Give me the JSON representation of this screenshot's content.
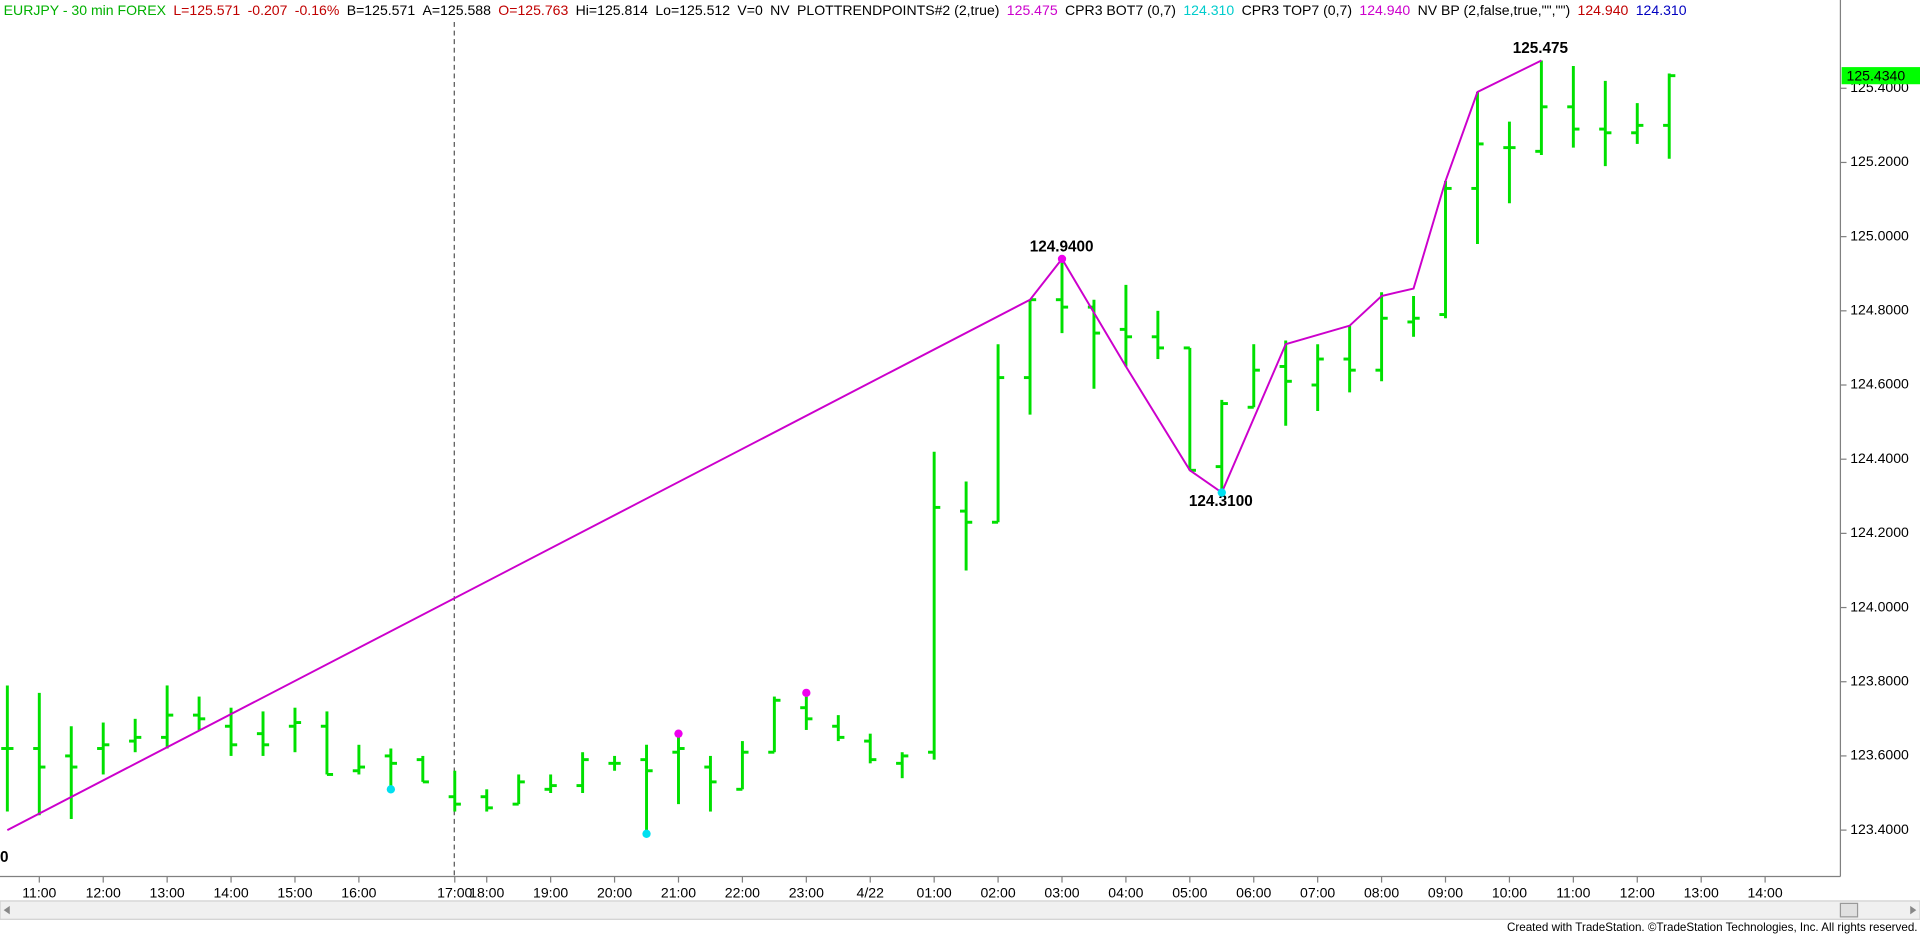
{
  "chart_data": {
    "type": "ohlc",
    "header": [
      {
        "text": "EURJPY - 30 min  FOREX",
        "color": "#00b000"
      },
      {
        "text": "L=125.571",
        "color": "#c00000"
      },
      {
        "text": "-0.207",
        "color": "#c00000"
      },
      {
        "text": "-0.16%",
        "color": "#c00000"
      },
      {
        "text": "B=125.571",
        "color": "#000000"
      },
      {
        "text": "A=125.588",
        "color": "#000000"
      },
      {
        "text": "O=125.763",
        "color": "#c00000"
      },
      {
        "text": "Hi=125.814",
        "color": "#000000"
      },
      {
        "text": "Lo=125.512",
        "color": "#000000"
      },
      {
        "text": "V=0",
        "color": "#000000"
      },
      {
        "text": "NV",
        "color": "#000000"
      },
      {
        "text": "PLOTTRENDPOINTS#2 (2,true)",
        "color": "#000000"
      },
      {
        "text": "125.475",
        "color": "#cc00cc"
      },
      {
        "text": "CPR3 BOT7 (0,7)",
        "color": "#000000"
      },
      {
        "text": "124.310",
        "color": "#00cccc"
      },
      {
        "text": "CPR3 TOP7 (0,7)",
        "color": "#000000"
      },
      {
        "text": "124.940",
        "color": "#cc00cc"
      },
      {
        "text": "NV BP (2,false,true,\"\",\"\")",
        "color": "#000000"
      },
      {
        "text": "124.940",
        "color": "#c00000"
      },
      {
        "text": "124.310",
        "color": "#0000c0"
      }
    ],
    "categories": [
      null,
      "11:00",
      null,
      "12:00",
      null,
      "13:00",
      null,
      "14:00",
      null,
      "15:00",
      null,
      "16:00",
      null,
      null,
      "17:00",
      "18:00",
      null,
      "19:00",
      null,
      "20:00",
      null,
      "21:00",
      null,
      "22:00",
      null,
      "23:00",
      null,
      "4/22",
      null,
      "01:00",
      null,
      "02:00",
      null,
      "03:00",
      null,
      "04:00",
      null,
      "05:00",
      null,
      "06:00",
      null,
      "07:00",
      null,
      "08:00",
      null,
      "09:00",
      null,
      "10:00",
      null,
      "11:00",
      null,
      "12:00",
      null,
      "13:00",
      null,
      "14:00"
    ],
    "open": [
      123.62,
      123.62,
      123.6,
      123.62,
      123.64,
      123.65,
      123.71,
      123.68,
      123.66,
      123.68,
      123.68,
      123.56,
      123.6,
      123.59,
      123.49,
      123.49,
      123.47,
      123.51,
      123.52,
      123.58,
      123.59,
      123.61,
      123.57,
      123.51,
      123.61,
      123.73,
      123.68,
      123.64,
      123.58,
      123.61,
      124.26,
      124.23,
      124.62,
      124.83,
      124.81,
      124.75,
      124.73,
      124.7,
      124.38,
      124.54,
      124.65,
      124.6,
      124.67,
      124.64,
      124.77,
      124.79,
      125.13,
      125.24,
      125.23,
      125.35,
      125.29,
      125.28,
      125.3,
      null,
      null,
      null
    ],
    "high": [
      123.79,
      123.77,
      123.68,
      123.69,
      123.7,
      123.79,
      123.76,
      123.73,
      123.72,
      123.73,
      123.72,
      123.63,
      123.62,
      123.6,
      123.56,
      123.51,
      123.55,
      123.55,
      123.61,
      123.6,
      123.63,
      123.65,
      123.6,
      123.64,
      123.76,
      123.76,
      123.71,
      123.66,
      123.61,
      124.42,
      124.34,
      124.71,
      124.83,
      124.94,
      124.83,
      124.87,
      124.8,
      124.7,
      124.56,
      124.71,
      124.72,
      124.71,
      124.76,
      124.85,
      124.84,
      125.15,
      125.39,
      125.31,
      125.475,
      125.46,
      125.42,
      125.36,
      125.44,
      null,
      null,
      null
    ],
    "low": [
      123.45,
      123.44,
      123.43,
      123.55,
      123.61,
      123.62,
      123.67,
      123.6,
      123.6,
      123.61,
      123.55,
      123.55,
      123.51,
      123.53,
      123.45,
      123.45,
      123.47,
      123.5,
      123.5,
      123.56,
      123.39,
      123.47,
      123.45,
      123.51,
      123.61,
      123.67,
      123.64,
      123.58,
      123.54,
      123.59,
      124.1,
      124.23,
      124.52,
      124.74,
      124.59,
      124.65,
      124.67,
      124.37,
      124.31,
      124.54,
      124.49,
      124.53,
      124.58,
      124.61,
      124.73,
      124.78,
      124.98,
      125.09,
      125.22,
      125.24,
      125.19,
      125.25,
      125.21,
      null,
      null,
      null
    ],
    "close": [
      123.62,
      123.57,
      123.57,
      123.63,
      123.65,
      123.71,
      123.7,
      123.63,
      123.63,
      123.69,
      123.55,
      123.57,
      123.58,
      123.53,
      123.47,
      123.46,
      123.53,
      123.52,
      123.59,
      123.58,
      123.56,
      123.62,
      123.53,
      123.61,
      123.75,
      123.7,
      123.65,
      123.59,
      123.6,
      124.27,
      124.23,
      124.62,
      124.83,
      124.81,
      124.74,
      124.73,
      124.7,
      124.37,
      124.55,
      124.64,
      124.61,
      124.67,
      124.64,
      124.78,
      124.78,
      125.13,
      125.25,
      125.24,
      125.35,
      125.29,
      125.28,
      125.3,
      125.434,
      null,
      null,
      null
    ],
    "color": "#00e000",
    "trend": {
      "color": "#cc00cc",
      "x": [
        0,
        32,
        33,
        35,
        37,
        38,
        40,
        42,
        43,
        44,
        45,
        46,
        48
      ],
      "values": [
        123.4,
        124.83,
        124.94,
        124.65,
        124.37,
        124.31,
        124.71,
        124.76,
        124.84,
        124.86,
        125.15,
        125.39,
        125.475
      ]
    },
    "markers": [
      {
        "color": "#ee00ee",
        "x": [
          21,
          25,
          33
        ],
        "values": [
          123.66,
          123.77,
          124.94
        ]
      },
      {
        "color": "#00e0f0",
        "x": [
          12,
          20,
          38
        ],
        "values": [
          123.51,
          123.39,
          124.31
        ]
      }
    ],
    "annotations": [
      "124.9400",
      "124.3100",
      "125.475",
      "0"
    ],
    "last_price": {
      "value": 125.434,
      "label": "125.4340"
    },
    "ylim": [
      123.275,
      125.638
    ],
    "yticks": [
      {
        "value": 123.4,
        "label": "123.4000"
      },
      {
        "value": 123.6,
        "label": "123.6000"
      },
      {
        "value": 123.8,
        "label": "123.8000"
      },
      {
        "value": 124.0,
        "label": "124.0000"
      },
      {
        "value": 124.2,
        "label": "124.2000"
      },
      {
        "value": 124.4,
        "label": "124.4000"
      },
      {
        "value": 124.6,
        "label": "124.6000"
      },
      {
        "value": 124.8,
        "label": "124.8000"
      },
      {
        "value": 125.0,
        "label": "125.0000"
      },
      {
        "value": 125.2,
        "label": "125.2000"
      },
      {
        "value": 125.4,
        "label": "125.4000"
      }
    ],
    "footer": "Created with TradeStation. ©TradeStation Technologies, Inc. All rights reserved."
  }
}
